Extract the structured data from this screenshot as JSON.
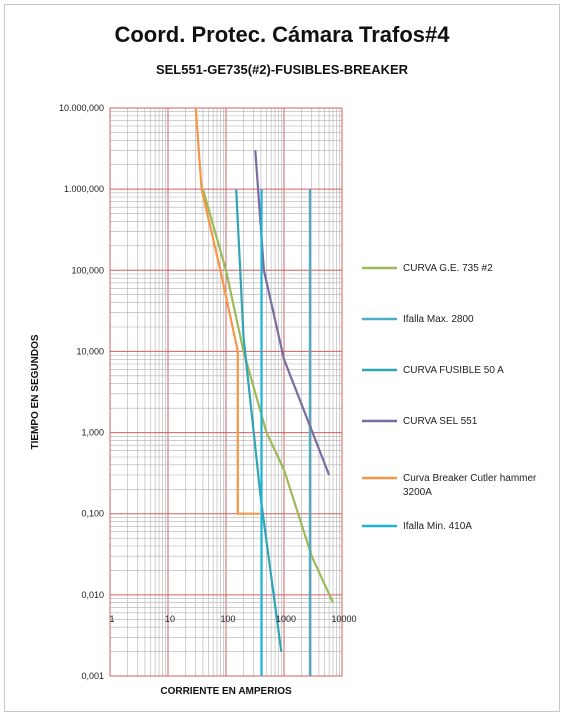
{
  "chart_data": {
    "type": "line",
    "title": "Coord. Protec. Cámara Trafos#4",
    "subtitle": "SEL551-GE735(#2)-FUSIBLES-BREAKER",
    "xlabel": "CORRIENTE EN AMPERIOS",
    "ylabel": "TIEMPO EN SEGUNDOS",
    "x_scale": "log",
    "y_scale": "log",
    "xlim": [
      1,
      10000
    ],
    "ylim": [
      0.001,
      10000
    ],
    "x_ticks": [
      "1",
      "10",
      "100",
      "1000",
      "10000"
    ],
    "y_ticks": [
      "10.000,000",
      "1.000,000",
      "100,000",
      "10,000",
      "1,000",
      "0,100",
      "0,010",
      "0,001"
    ],
    "grid": true,
    "legend_position": "right",
    "series": [
      {
        "name": "CURVA G.E. 735 #2",
        "color": "#9bbb59",
        "x": [
          40,
          100,
          200,
          500,
          1000,
          3000,
          7000
        ],
        "y": [
          1000,
          100,
          10,
          1,
          0.35,
          0.03,
          0.008
        ]
      },
      {
        "name": "Ifalla Max. 2800",
        "color": "#4bacc6",
        "x": [
          2800,
          2800
        ],
        "y": [
          0.001,
          1000
        ]
      },
      {
        "name": "CURVA FUSIBLE 50 A",
        "color": "#31a4b6",
        "x": [
          150,
          200,
          400,
          900
        ],
        "y": [
          1000,
          15,
          0.15,
          0.002
        ]
      },
      {
        "name": "CURVA SEL 551",
        "color": "#7a6ba0",
        "x": [
          320,
          450,
          1000,
          6000
        ],
        "y": [
          3000,
          100,
          8,
          0.3
        ]
      },
      {
        "name": "Curva Breaker Cutler hammer 3200A",
        "color": "#f79646",
        "x": [
          30,
          38,
          80,
          160,
          160,
          380
        ],
        "y": [
          10000,
          1000,
          100,
          10,
          0.1,
          0.1
        ]
      },
      {
        "name": "Ifalla Min. 410A",
        "color": "#1fb1d3",
        "x": [
          410,
          410
        ],
        "y": [
          0.001,
          1000
        ]
      }
    ]
  }
}
